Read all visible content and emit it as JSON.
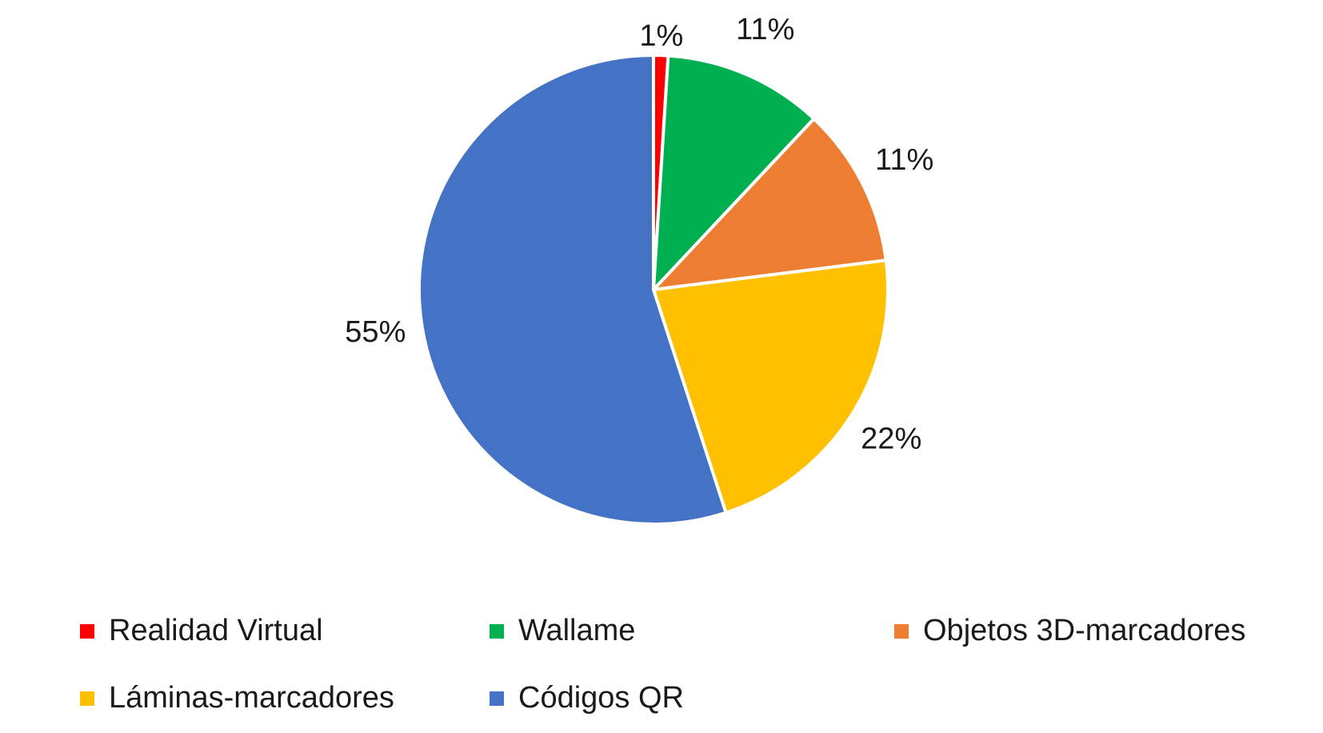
{
  "chart_data": {
    "type": "pie",
    "title": "",
    "slices": [
      {
        "label": "Realidad Virtual",
        "value": 1,
        "display": "1%",
        "color": "#FF0000"
      },
      {
        "label": "Wallame",
        "value": 11,
        "display": "11%",
        "color": "#00B050"
      },
      {
        "label": "Objetos 3D-marcadores",
        "value": 11,
        "display": "11%",
        "color": "#ED7D31"
      },
      {
        "label": "Láminas-marcadores",
        "value": 22,
        "display": "22%",
        "color": "#FFC000"
      },
      {
        "label": "Códigos QR",
        "value": 55,
        "display": "55%",
        "color": "#4472C4"
      }
    ],
    "legend_position": "bottom",
    "start_angle": "top, clockwise"
  }
}
